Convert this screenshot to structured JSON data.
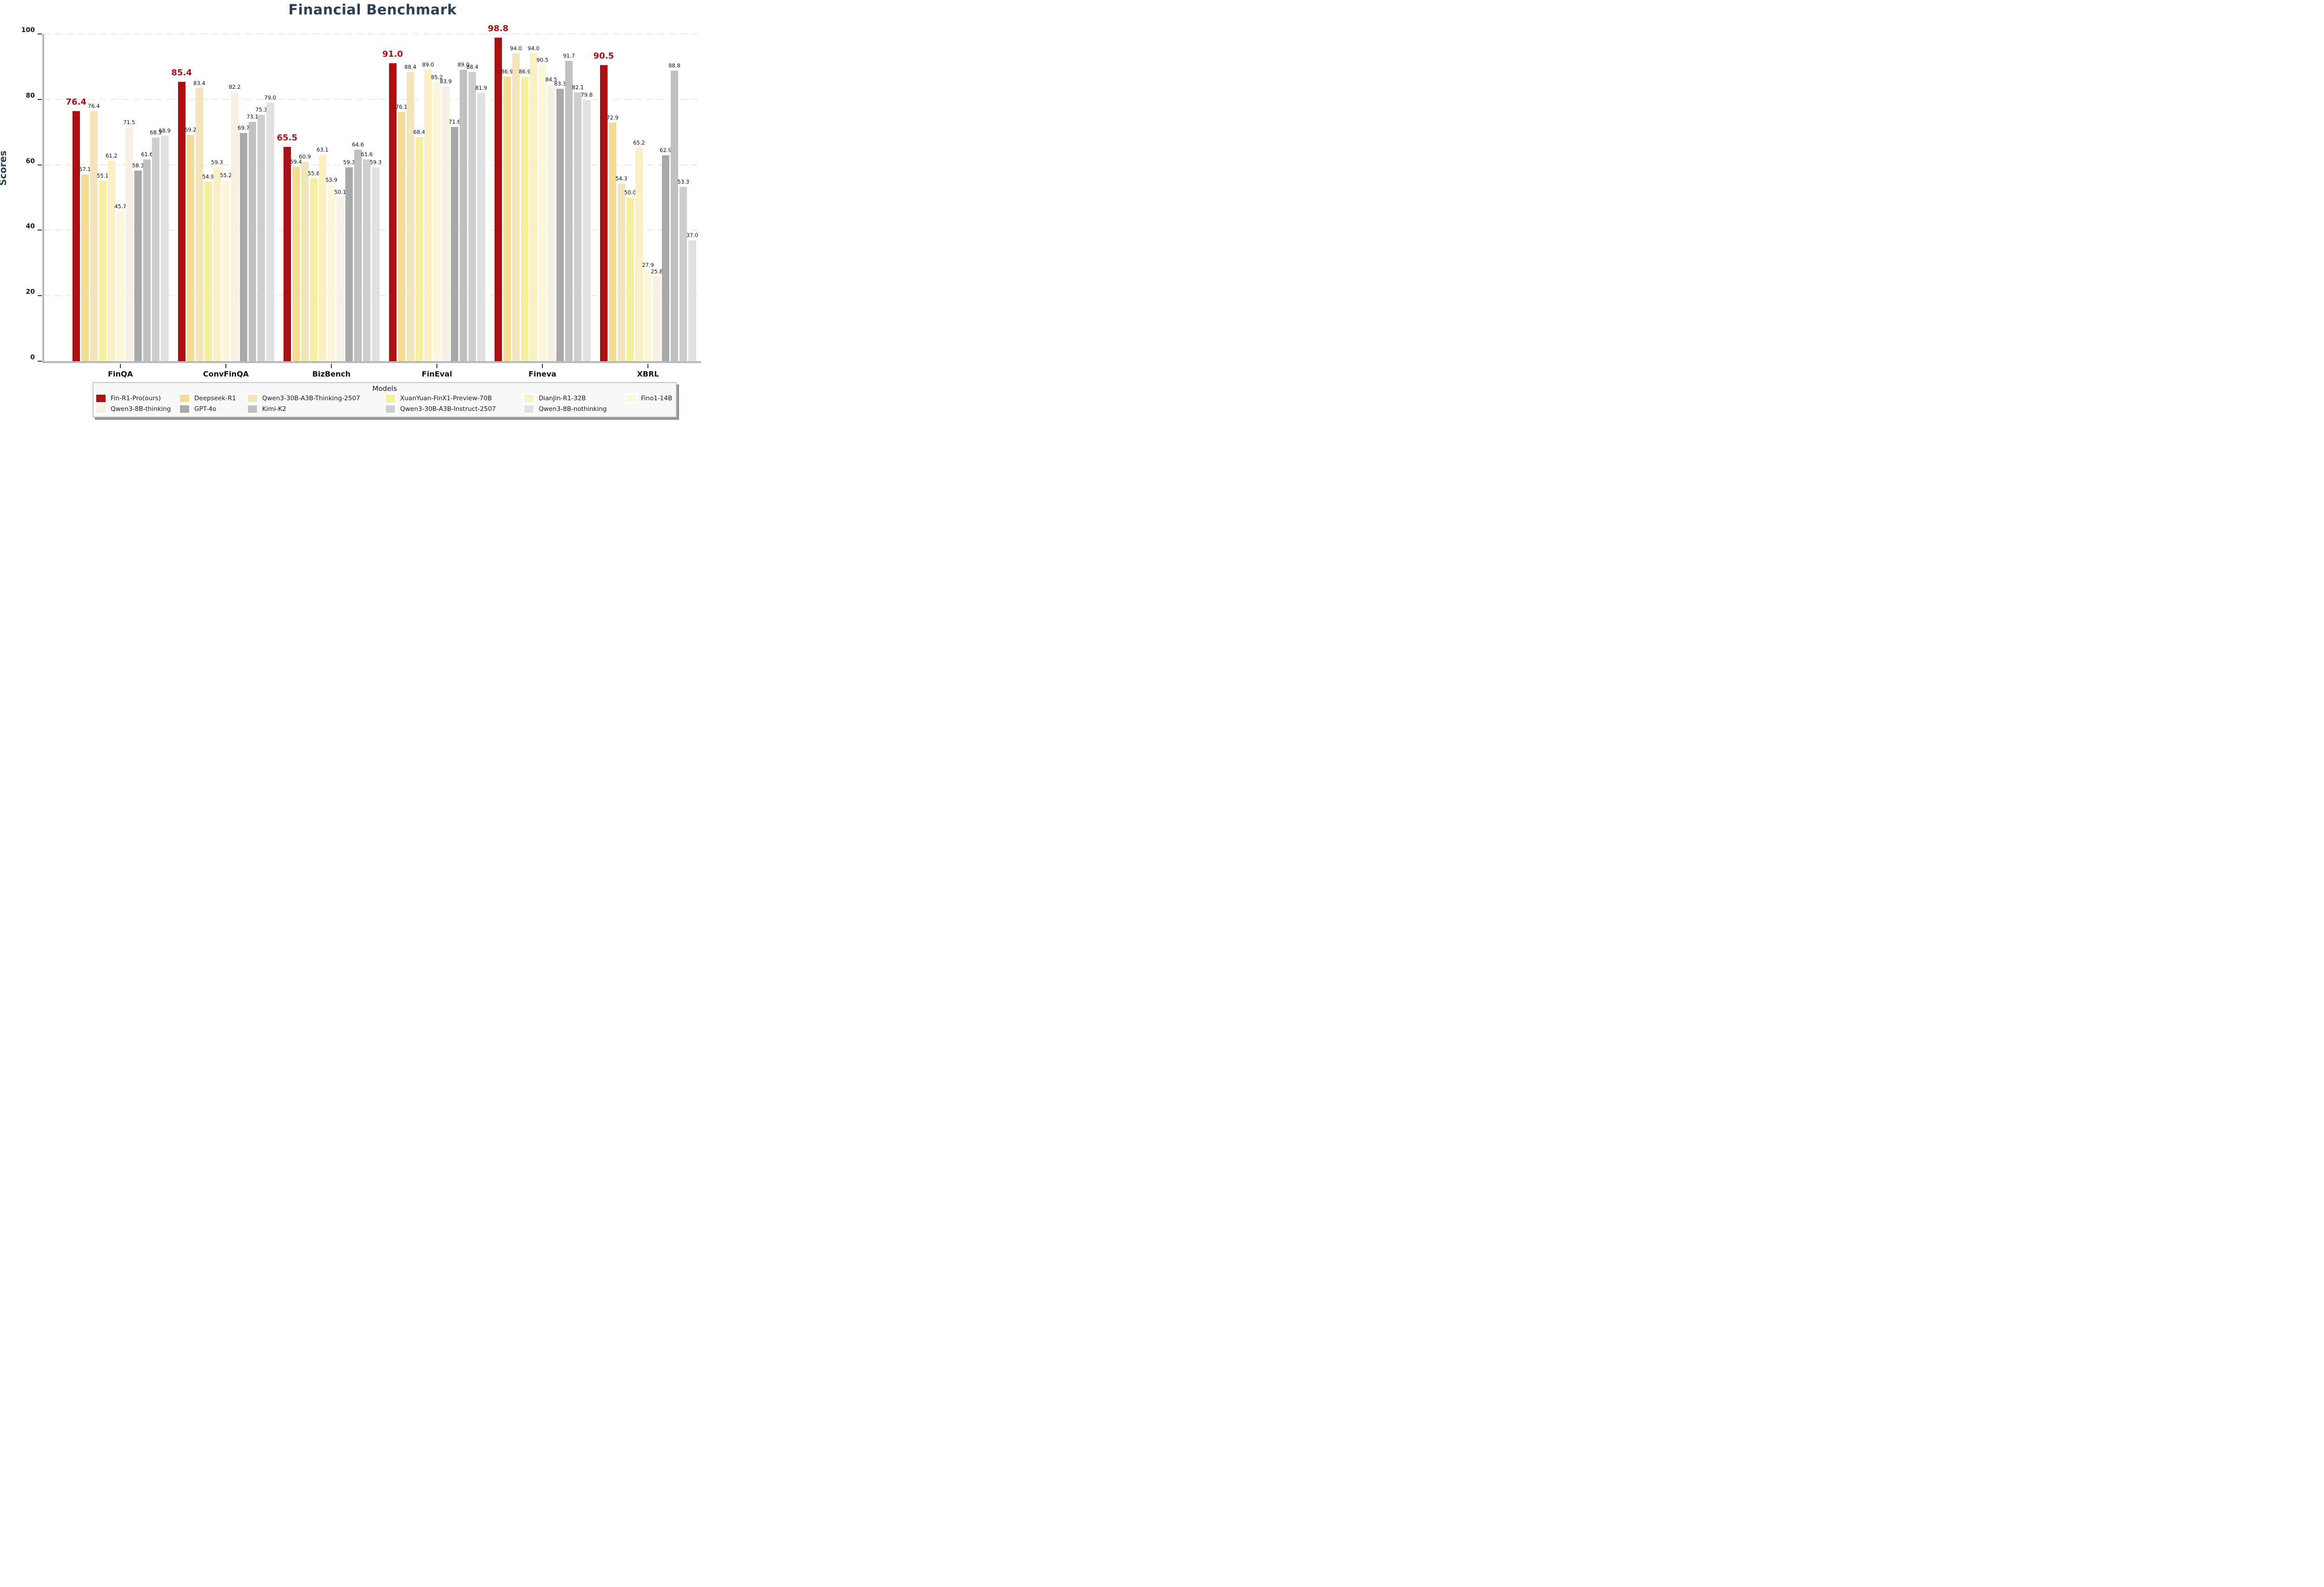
{
  "title": "Financial Benchmark",
  "axes": {
    "ylabel": "Scores",
    "yticks": [
      "0",
      "20",
      "40",
      "60",
      "80",
      "100"
    ],
    "categories": [
      "FinQA",
      "ConvFinQA",
      "BizBench",
      "FinEval",
      "Fineva",
      "XBRL"
    ]
  },
  "legend": {
    "title": "Models",
    "rows": [
      [
        0,
        1,
        2,
        3,
        4,
        5
      ],
      [
        6,
        7,
        8,
        9,
        10
      ]
    ]
  },
  "colors": {
    "title_text": "#2E4053",
    "highlight_red": "#AC1015",
    "axis_spine": "#b4b9bf",
    "gridline": "#e9e9e9",
    "value_label": "#111111",
    "legend_bg": "#f8f8f8",
    "legend_border": "#c6c6c6",
    "legend_shadow": "#90969c"
  },
  "chart_data": {
    "type": "bar",
    "title": "Financial Benchmark",
    "xlabel": "",
    "ylabel": "Scores",
    "ylim": [
      0,
      100
    ],
    "yticks": [
      0,
      20,
      40,
      60,
      80,
      100
    ],
    "grid": "horizontal dashed at yticks",
    "legend_position": "bottom",
    "categories": [
      "FinQA",
      "ConvFinQA",
      "BizBench",
      "FinEval",
      "Fineva",
      "XBRL"
    ],
    "series": [
      {
        "name": "Fin-R1-Pro(ours)",
        "color": "#AC1015",
        "highlight": true,
        "values": [
          76.4,
          85.4,
          65.5,
          91.0,
          98.8,
          90.5
        ]
      },
      {
        "name": "Deepseek-R1",
        "color": "#F5DB94",
        "highlight": false,
        "values": [
          57.1,
          69.2,
          59.4,
          76.1,
          86.9,
          72.9
        ]
      },
      {
        "name": "Qwen3-30B-A3B-Thinking-2507",
        "color": "#F3E4BB",
        "highlight": false,
        "values": [
          76.4,
          83.4,
          60.9,
          88.4,
          94.0,
          54.3
        ]
      },
      {
        "name": "XuanYuan-FinX1-Preview-70B",
        "color": "#F6EF9D",
        "highlight": false,
        "values": [
          55.1,
          54.9,
          55.8,
          68.4,
          86.9,
          50.0
        ]
      },
      {
        "name": "DianJin-R1-32B",
        "color": "#FAF0C4",
        "highlight": false,
        "values": [
          61.2,
          59.3,
          63.1,
          89.0,
          94.0,
          65.2
        ]
      },
      {
        "name": "Fino1-14B",
        "color": "#FBF7D8",
        "highlight": false,
        "values": [
          45.7,
          55.2,
          53.9,
          85.2,
          90.5,
          27.9
        ]
      },
      {
        "name": "Qwen3-8B-thinking",
        "color": "#F6F1E3",
        "highlight": false,
        "values": [
          71.5,
          82.2,
          50.1,
          83.9,
          84.5,
          25.8
        ]
      },
      {
        "name": "GPT-4o",
        "color": "#A9A9A9",
        "highlight": false,
        "values": [
          58.3,
          69.7,
          59.3,
          71.6,
          83.3,
          62.9
        ]
      },
      {
        "name": "Kimi-K2",
        "color": "#C1C1C1",
        "highlight": false,
        "values": [
          61.6,
          73.1,
          64.6,
          89.0,
          91.7,
          88.8
        ]
      },
      {
        "name": "Qwen3-30B-A3B-Instruct-2507",
        "color": "#CECECE",
        "highlight": false,
        "values": [
          68.3,
          75.3,
          61.6,
          88.4,
          82.1,
          53.3
        ]
      },
      {
        "name": "Qwen3-8B-nothinking",
        "color": "#E1E1E1",
        "highlight": false,
        "values": [
          68.9,
          79.0,
          59.3,
          81.9,
          79.8,
          37.0
        ]
      }
    ]
  }
}
